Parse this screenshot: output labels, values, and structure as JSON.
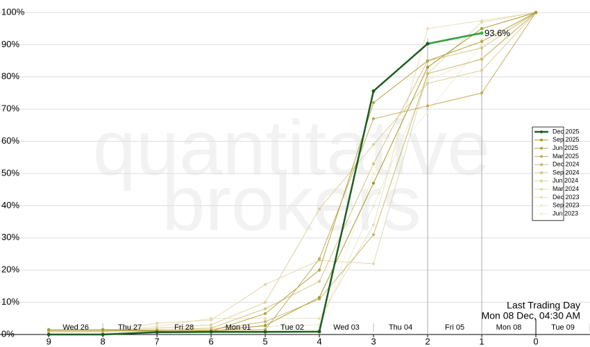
{
  "chart_data": {
    "type": "line",
    "watermark": [
      "quantitative",
      "brokers"
    ],
    "x": [
      9,
      8,
      7,
      6,
      5,
      4,
      3,
      2,
      1,
      0
    ],
    "xlim": [
      9.9,
      -1.0
    ],
    "xticks": [
      9,
      8,
      7,
      6,
      5,
      4,
      3,
      2,
      1,
      0
    ],
    "ylim": [
      0,
      100
    ],
    "yticks": [
      {
        "value": 0,
        "label": "0%"
      },
      {
        "value": 10,
        "label": "10%"
      },
      {
        "value": 20,
        "label": "20%"
      },
      {
        "value": 30,
        "label": "30%"
      },
      {
        "value": 40,
        "label": "40%"
      },
      {
        "value": 50,
        "label": "50%"
      },
      {
        "value": 60,
        "label": "60%"
      },
      {
        "value": 70,
        "label": "70%"
      },
      {
        "value": 80,
        "label": "80%"
      },
      {
        "value": 90,
        "label": "90%"
      },
      {
        "value": 100,
        "label": "100%"
      }
    ],
    "grid": true,
    "day_labels": [
      "Wed 26",
      "Thu 27",
      "Fri 28",
      "Mon 01",
      "Tue 02",
      "Wed 03",
      "Thu 04",
      "Fri 05",
      "Mon 08",
      "Tue 09"
    ],
    "vertical_lines": [
      2,
      1
    ],
    "last_trading_day": {
      "x": 0,
      "text": [
        "Last Trading Day",
        "Mon 08 Dec, 04:30 AM"
      ]
    },
    "legend": "right",
    "series": [
      {
        "name": "Dec 2025",
        "color": "#1b5e20",
        "highlight_color": "#2ebd3a",
        "values": [
          0,
          0,
          0.7,
          0.8,
          0.8,
          0.9,
          75.6,
          90.3,
          93.6,
          null
        ],
        "value_labels": [
          null,
          null,
          null,
          null,
          null,
          null,
          null,
          null,
          "93.6%",
          null
        ]
      },
      {
        "name": "Sep 2025",
        "color": "#a89a2c",
        "values": [
          1.5,
          1.5,
          1.2,
          1,
          2.8,
          11.5,
          47,
          83,
          95,
          100
        ]
      },
      {
        "name": "Jun 2025",
        "color": "#b5a540",
        "values": [
          1.5,
          1.5,
          1,
          1,
          6.5,
          20,
          72,
          85,
          91,
          100
        ]
      },
      {
        "name": "Mar 2025",
        "color": "#c2ad5a",
        "values": [
          1.5,
          1.5,
          1,
          1.2,
          1.5,
          23.5,
          67,
          71,
          75,
          100
        ]
      },
      {
        "name": "Dec 2024",
        "color": "#cbb872",
        "values": [
          1.2,
          1.2,
          1,
          1.5,
          4,
          11,
          31,
          81,
          85.5,
          100
        ]
      },
      {
        "name": "Sep 2024",
        "color": "#d3c688",
        "values": [
          1,
          1,
          1.5,
          2,
          8,
          16.5,
          53,
          85,
          89,
          100
        ]
      },
      {
        "name": "Jun 2024",
        "color": "#dbd29c",
        "values": [
          1,
          1,
          2,
          3,
          10,
          39,
          59,
          78,
          82,
          100
        ]
      },
      {
        "name": "Mar 2024",
        "color": "#e2d9ad",
        "values": [
          1,
          1,
          3.5,
          4.5,
          15.5,
          23,
          22,
          81,
          97,
          100
        ]
      },
      {
        "name": "Dec 2023",
        "color": "#e8e1bf",
        "values": [
          1,
          1,
          2.5,
          5,
          5,
          5,
          34,
          95,
          97.5,
          100
        ]
      },
      {
        "name": "Sep 2023",
        "color": "#ede8cd",
        "values": [
          0.8,
          0.8,
          1,
          2,
          2.5,
          3,
          40,
          79,
          86,
          100
        ]
      },
      {
        "name": "Jun 2023",
        "color": "#f1eed9",
        "values": [
          0.5,
          0.5,
          0.8,
          1,
          1.2,
          1.5,
          50,
          69,
          90,
          100
        ]
      }
    ]
  }
}
